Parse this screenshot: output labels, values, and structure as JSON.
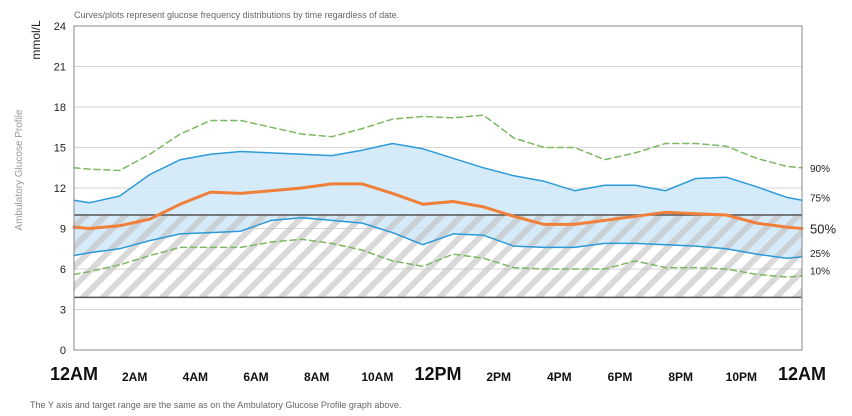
{
  "chart_data": {
    "type": "line",
    "top_note": "Curves/plots represent glucose frequency distributions by time regardless of date.",
    "bottom_note": "The Y axis and target range are the same as on the Ambulatory Glucose Profile graph above.",
    "ylabel": "mmol/L",
    "side_label": "Ambulatory Glucose Profile",
    "ylim": [
      0,
      24
    ],
    "yticks": [
      "0",
      "3",
      "6",
      "9",
      "12",
      "15",
      "18",
      "21",
      "24"
    ],
    "target_range": [
      3.9,
      10.0
    ],
    "x_labels": [
      {
        "text": "12AM",
        "hour": 0,
        "big": true
      },
      {
        "text": "2AM",
        "hour": 2,
        "big": false
      },
      {
        "text": "4AM",
        "hour": 4,
        "big": false
      },
      {
        "text": "6AM",
        "hour": 6,
        "big": false
      },
      {
        "text": "8AM",
        "hour": 8,
        "big": false
      },
      {
        "text": "10AM",
        "hour": 10,
        "big": false
      },
      {
        "text": "12PM",
        "hour": 12,
        "big": true
      },
      {
        "text": "2PM",
        "hour": 14,
        "big": false
      },
      {
        "text": "4PM",
        "hour": 16,
        "big": false
      },
      {
        "text": "6PM",
        "hour": 18,
        "big": false
      },
      {
        "text": "8PM",
        "hour": 20,
        "big": false
      },
      {
        "text": "10PM",
        "hour": 22,
        "big": false
      },
      {
        "text": "12AM",
        "hour": 24,
        "big": true
      }
    ],
    "hours": [
      0,
      0.5,
      1.5,
      2.5,
      3.5,
      4.5,
      5.5,
      6.5,
      7.5,
      8.5,
      9.5,
      10.5,
      11.5,
      12.5,
      13.5,
      14.5,
      15.5,
      16.5,
      17.5,
      18.5,
      19.5,
      20.5,
      21.5,
      22.5,
      23.5,
      24
    ],
    "series": [
      {
        "name": "90%",
        "label": "90%",
        "color": "#7cb860",
        "dashed": true,
        "width": 1.5,
        "values": [
          13.5,
          13.4,
          13.3,
          14.5,
          16.0,
          17.0,
          17.0,
          16.5,
          16.0,
          15.8,
          16.4,
          17.1,
          17.3,
          17.2,
          17.4,
          15.7,
          15.0,
          15.0,
          14.1,
          14.6,
          15.3,
          15.3,
          15.1,
          14.2,
          13.6,
          13.5
        ]
      },
      {
        "name": "75%",
        "label": "75%",
        "color": "#2c9ad8",
        "dashed": false,
        "width": 1.5,
        "values": [
          11.1,
          10.9,
          11.4,
          13.0,
          14.1,
          14.5,
          14.7,
          14.6,
          14.5,
          14.4,
          14.8,
          15.3,
          14.9,
          14.2,
          13.5,
          12.9,
          12.5,
          11.8,
          12.2,
          12.2,
          11.8,
          12.7,
          12.8,
          12.1,
          11.3,
          11.1
        ]
      },
      {
        "name": "50%",
        "label": "50%",
        "color": "#f07f3a",
        "dashed": false,
        "width": 3,
        "values": [
          9.1,
          9.0,
          9.2,
          9.7,
          10.8,
          11.7,
          11.6,
          11.8,
          12.0,
          12.3,
          12.3,
          11.6,
          10.8,
          11.0,
          10.6,
          9.9,
          9.3,
          9.3,
          9.6,
          9.9,
          10.2,
          10.1,
          10.0,
          9.4,
          9.1,
          9.0
        ]
      },
      {
        "name": "25%",
        "label": "25%",
        "color": "#2c9ad8",
        "dashed": false,
        "width": 1.5,
        "values": [
          7.0,
          7.2,
          7.5,
          8.1,
          8.6,
          8.7,
          8.8,
          9.6,
          9.8,
          9.6,
          9.4,
          8.7,
          7.8,
          8.6,
          8.5,
          7.7,
          7.6,
          7.6,
          7.9,
          7.9,
          7.8,
          7.7,
          7.5,
          7.1,
          6.8,
          6.9
        ]
      },
      {
        "name": "10%",
        "label": "10%",
        "color": "#7cb860",
        "dashed": true,
        "width": 1.5,
        "values": [
          5.6,
          5.8,
          6.3,
          7.0,
          7.6,
          7.6,
          7.6,
          8.0,
          8.2,
          7.9,
          7.4,
          6.6,
          6.2,
          7.1,
          6.8,
          6.1,
          6.0,
          6.0,
          6.0,
          6.6,
          6.1,
          6.1,
          6.0,
          5.6,
          5.4,
          5.5
        ]
      }
    ]
  }
}
